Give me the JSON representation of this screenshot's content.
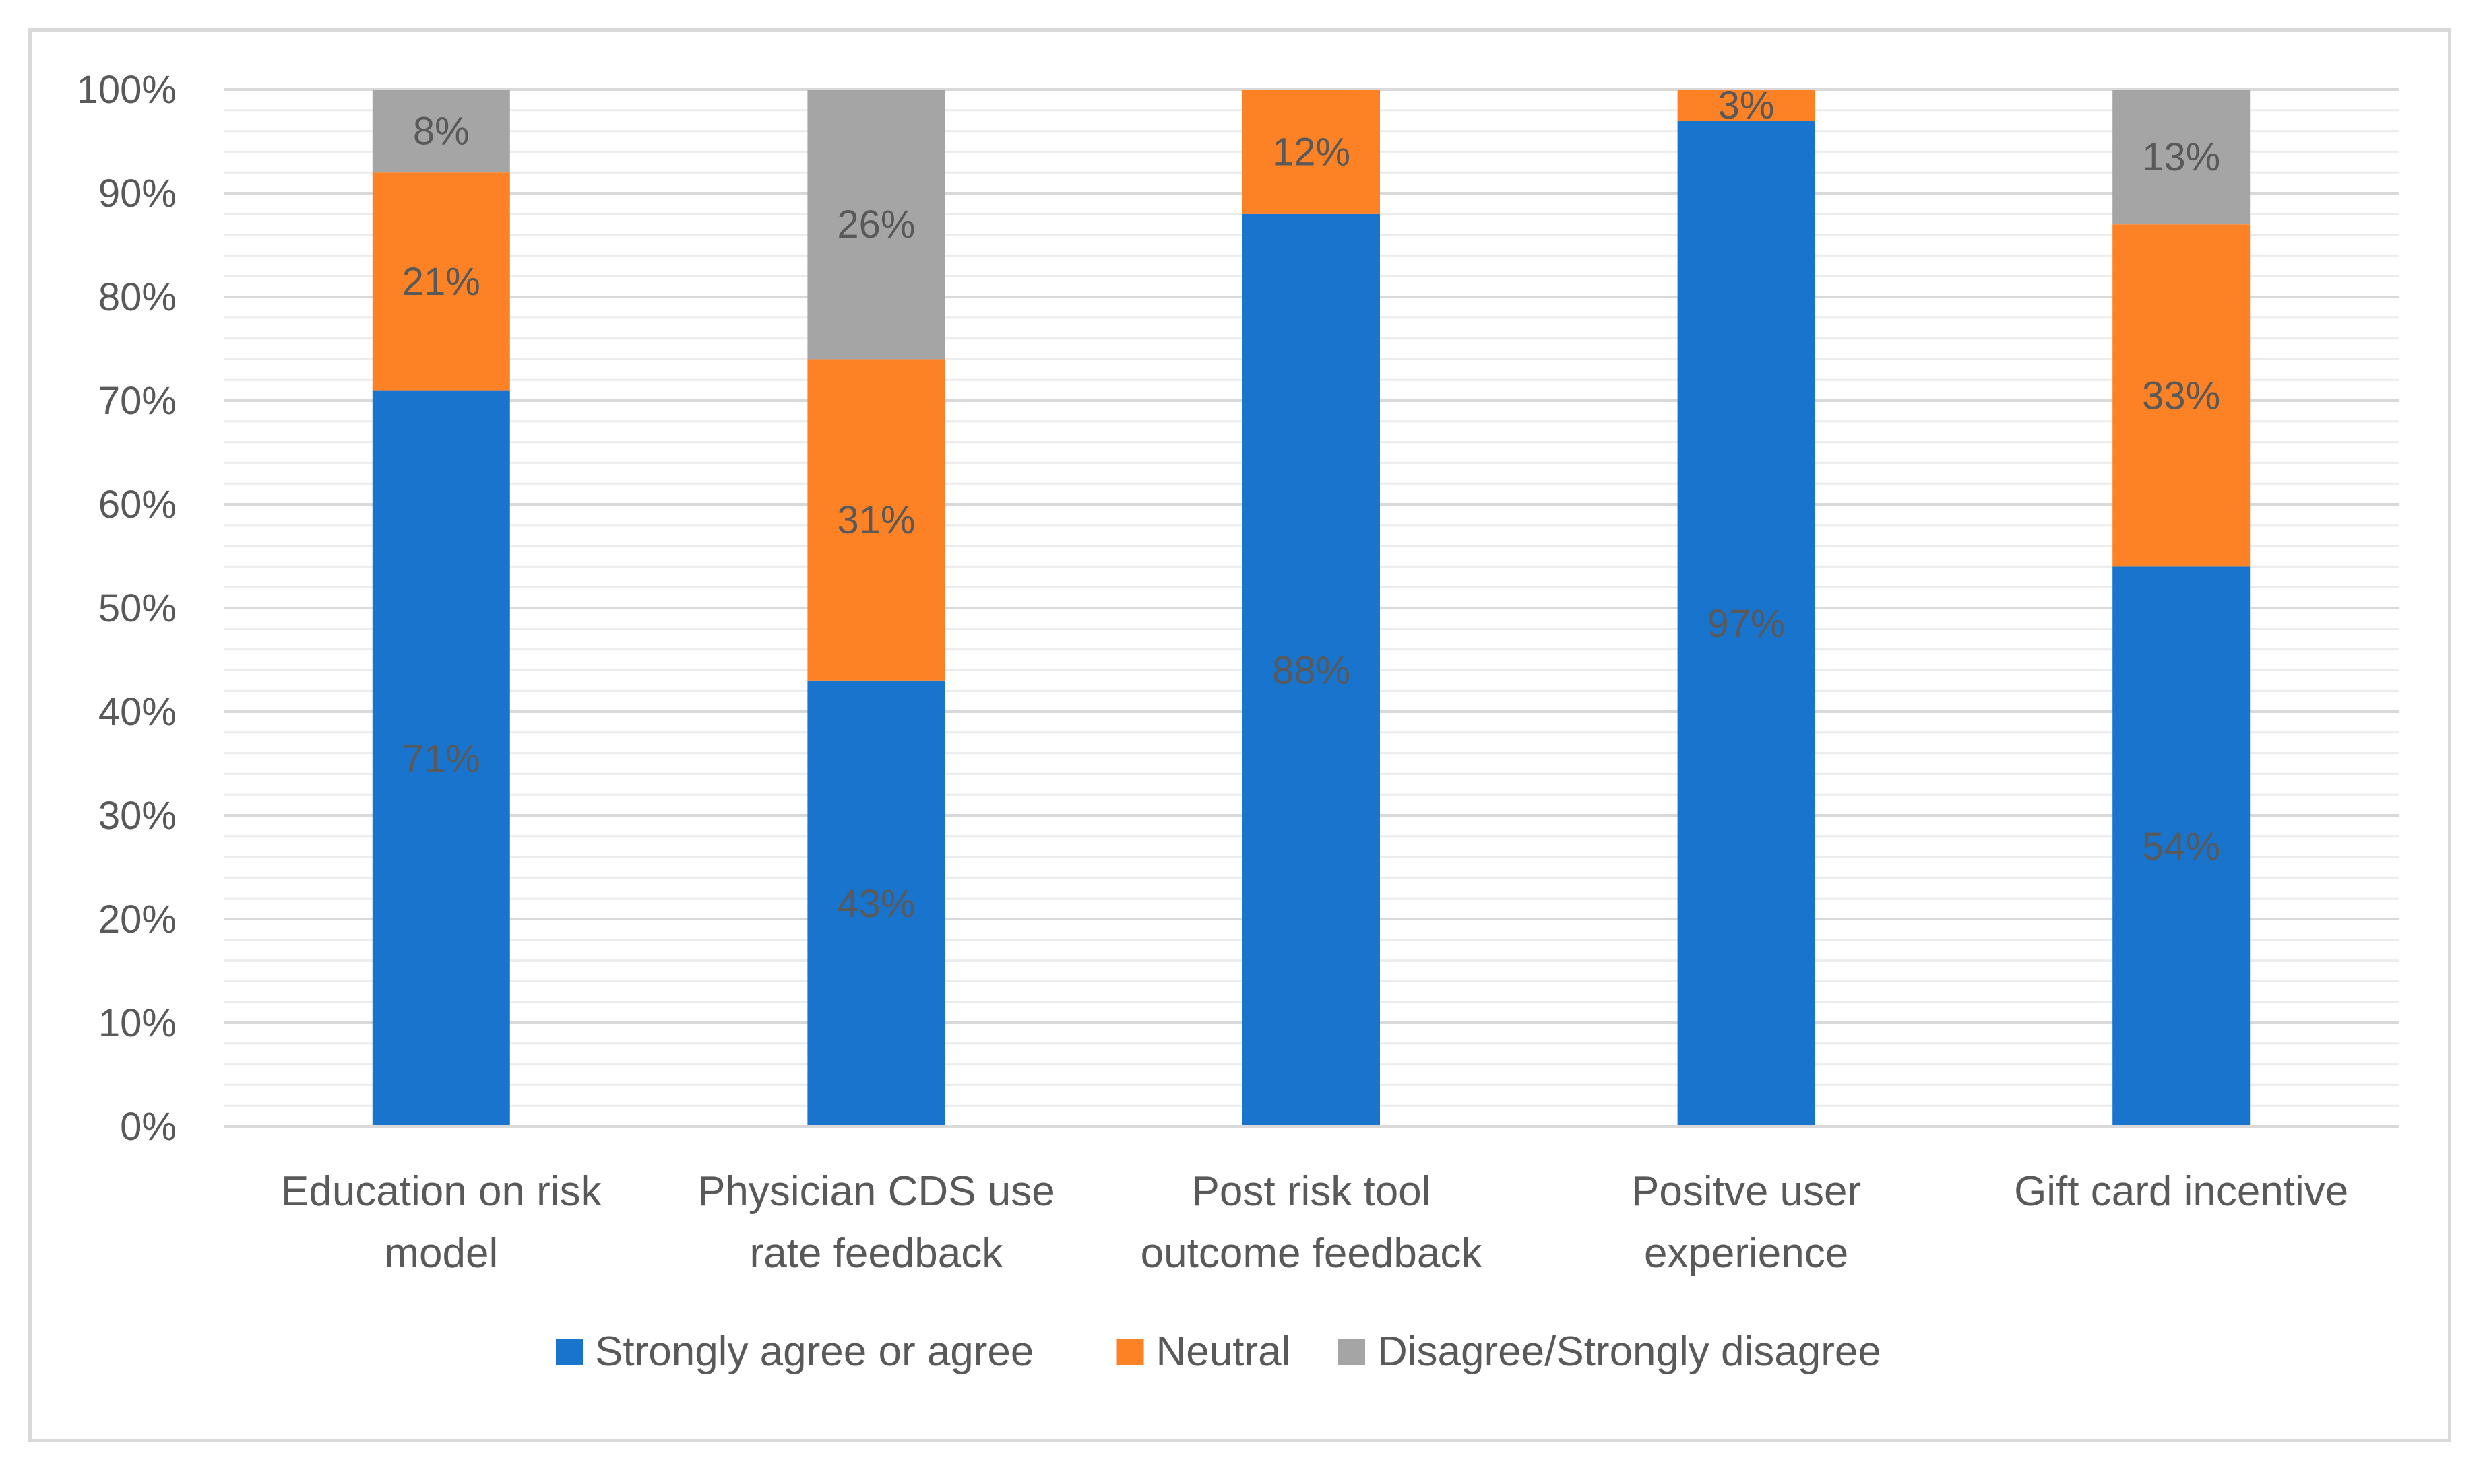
{
  "chart_data": {
    "type": "bar",
    "stacked": true,
    "percent_stacked": true,
    "title": "",
    "xlabel": "",
    "ylabel": "",
    "ylim": [
      0,
      100
    ],
    "yticks": [
      "0%",
      "10%",
      "20%",
      "30%",
      "40%",
      "50%",
      "60%",
      "70%",
      "80%",
      "90%",
      "100%"
    ],
    "categories": [
      [
        "Education on risk",
        "model"
      ],
      [
        "Physician CDS use",
        "rate feedback"
      ],
      [
        "Post risk tool",
        "outcome feedback"
      ],
      [
        "Positve user",
        "experience"
      ],
      [
        "Gift card incentive"
      ]
    ],
    "series": [
      {
        "name": "Strongly agree or agree",
        "color": "#1874cd",
        "values": [
          71,
          43,
          88,
          97,
          54
        ],
        "labels": [
          "71%",
          "43%",
          "88%",
          "97%",
          "54%"
        ]
      },
      {
        "name": "Neutral",
        "color": "#fd8226",
        "values": [
          21,
          31,
          12,
          3,
          33
        ],
        "labels": [
          "21%",
          "31%",
          "12%",
          "3%",
          "33%"
        ]
      },
      {
        "name": "Disagree/Strongly disagree",
        "color": "#a5a5a5",
        "values": [
          8,
          26,
          0,
          0,
          13
        ],
        "labels": [
          "8%",
          "26%",
          "",
          "",
          "13%"
        ]
      }
    ],
    "legend_position": "bottom",
    "grid": true
  }
}
